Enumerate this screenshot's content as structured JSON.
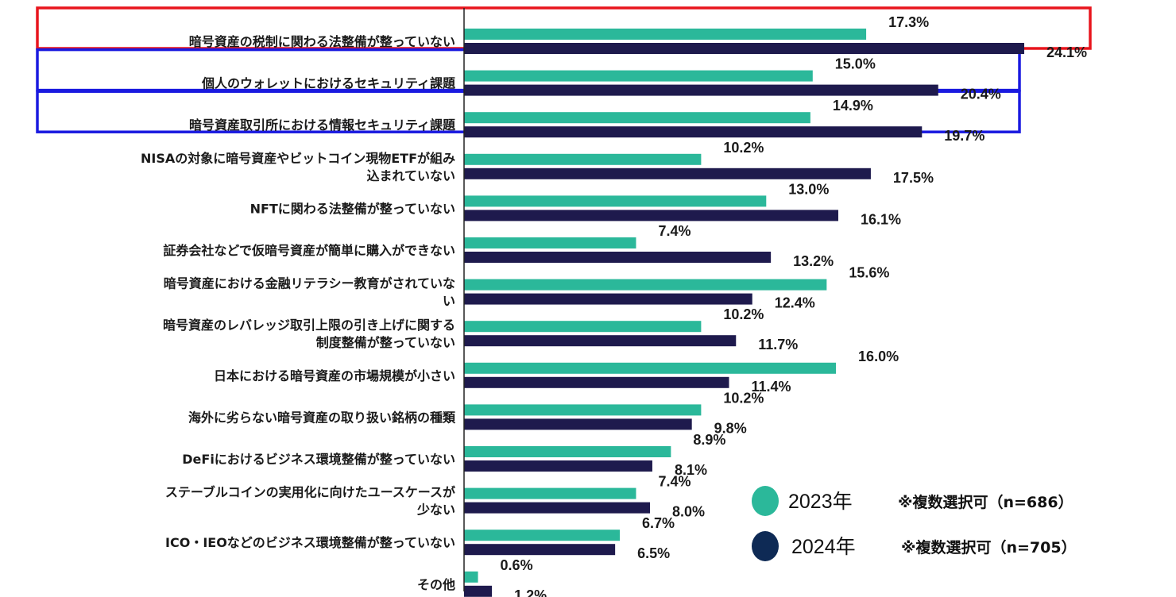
{
  "chart_data": {
    "type": "bar",
    "orientation": "horizontal",
    "categories": [
      [
        "暗号資産の税制に関わる法整備が整っていない"
      ],
      [
        "個人のウォレットにおけるセキュリティ課題"
      ],
      [
        "暗号資産取引所における情報セキュリティ課題"
      ],
      [
        "NISAの対象に暗号資産やビットコイン現物ETFが組み",
        "込まれていない"
      ],
      [
        "NFTに関わる法整備が整っていない"
      ],
      [
        "証券会社などで仮暗号資産が簡単に購入ができない"
      ],
      [
        "暗号資産における金融リテラシー教育がされていな",
        "い"
      ],
      [
        "暗号資産のレバレッジ取引上限の引き上げに関する",
        "制度整備が整っていない"
      ],
      [
        "日本における暗号資産の市場規模が小さい"
      ],
      [
        "海外に劣らない暗号資産の取り扱い銘柄の種類"
      ],
      [
        "DeFiにおけるビジネス環境整備が整っていない"
      ],
      [
        "ステーブルコインの実用化に向けたユースケースが",
        "少ない"
      ],
      [
        "ICO・IEOなどのビジネス環境整備が整っていない"
      ],
      [
        "その他"
      ]
    ],
    "series": [
      {
        "name": "2023年",
        "note": "※複数選択可（n=686）",
        "color": "#2bb89a",
        "values": [
          17.3,
          15.0,
          14.9,
          10.2,
          13.0,
          7.4,
          15.6,
          10.2,
          16.0,
          10.2,
          8.9,
          7.4,
          6.7,
          0.6
        ],
        "labels": [
          "17.3%",
          "15.0%",
          "14.9%",
          "10.2%",
          "13.0%",
          "7.4%",
          "15.6%",
          "10.2%",
          "16.0%",
          "10.2%",
          "8.9%",
          "7.4%",
          "6.7%",
          "0.6%"
        ]
      },
      {
        "name": "2024年",
        "note": "※複数選択可（n=705）",
        "color": "#1e1a4d",
        "values": [
          24.1,
          20.4,
          19.7,
          17.5,
          16.1,
          13.2,
          12.4,
          11.7,
          11.4,
          9.8,
          8.1,
          8.0,
          6.5,
          1.2
        ],
        "labels": [
          "24.1%",
          "20.4%",
          "19.7%",
          "17.5%",
          "16.1%",
          "13.2%",
          "12.4%",
          "11.7%",
          "11.4%",
          "9.8%",
          "8.1%",
          "8.0%",
          "6.5%",
          "1.2%"
        ]
      }
    ],
    "xlim": [
      0,
      24.1
    ],
    "highlights": [
      {
        "rows": [
          0
        ],
        "color": "#e8151d"
      },
      {
        "rows": [
          1
        ],
        "color": "#1a1ae0"
      },
      {
        "rows": [
          2
        ],
        "color": "#1a1ae0"
      }
    ],
    "legend": {
      "position": "bottom-right",
      "marker_colors": [
        "#2bb89a",
        "#0e2a55"
      ]
    }
  }
}
